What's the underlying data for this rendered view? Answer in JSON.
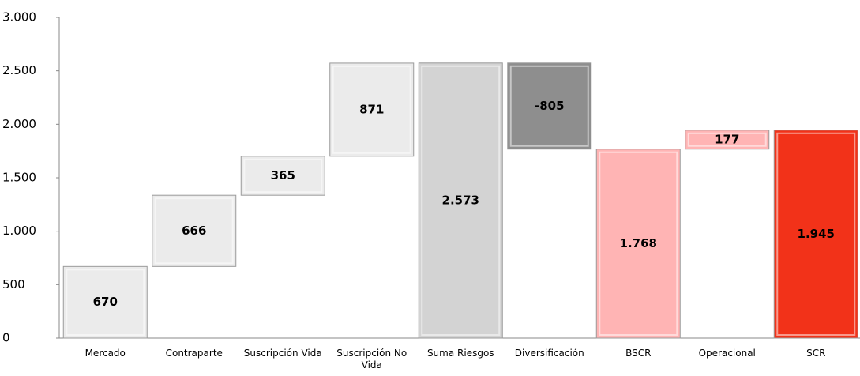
{
  "chart_data": {
    "type": "waterfall",
    "categories": [
      "Mercado",
      "Contraparte",
      "Suscripción Vida",
      "Suscripción No Vida",
      "Suma Riesgos",
      "Diversificación",
      "BSCR",
      "Operacional",
      "SCR"
    ],
    "values": [
      670,
      666,
      365,
      871,
      2573,
      -805,
      1768,
      177,
      1945
    ],
    "value_labels": [
      "670",
      "666",
      "365",
      "871",
      "2.573",
      "-805",
      "1.768",
      "177",
      "1.945"
    ],
    "totals": [
      false,
      false,
      false,
      false,
      true,
      false,
      true,
      false,
      true
    ],
    "colors": [
      "#ebebeb",
      "#ebebeb",
      "#ebebeb",
      "#ebebeb",
      "#d3d3d3",
      "#8e8e8e",
      "#ffb4b4",
      "#ffb4b4",
      "#f23219"
    ],
    "ylim": [
      0,
      3000
    ],
    "yticks": [
      0,
      500,
      {
        "value": 1000,
        "label": "1.000"
      },
      {
        "value": 1500,
        "label": "1.500"
      },
      {
        "value": 2000,
        "label": "2.000"
      },
      {
        "value": 2500,
        "label": "2.500"
      },
      {
        "value": 3000,
        "label": "3.000"
      }
    ],
    "grid": false
  }
}
